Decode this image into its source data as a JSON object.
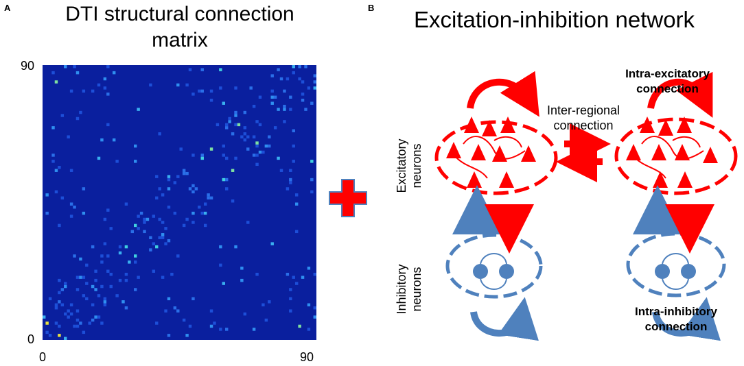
{
  "panel_a": {
    "label": "A",
    "title_line1": "DTI structural connection",
    "title_line2": "matrix",
    "y_top": "90",
    "y_bottom": "0",
    "x_left": "0",
    "x_right": "90"
  },
  "panel_b": {
    "label": "B",
    "title": "Excitation-inhibition network",
    "excitatory_label_1": "Excitatory",
    "excitatory_label_2": "neurons",
    "inhibitory_label_1": "Inhibitory",
    "inhibitory_label_2": "neurons",
    "inter_regional_1": "Inter-regional",
    "inter_regional_2": "connection",
    "intra_excitatory_1": "Intra-excitatory",
    "intra_excitatory_2": "connection",
    "intra_inhibitory_1": "Intra-inhibitory",
    "intra_inhibitory_2": "connection"
  },
  "colors": {
    "matrix_bg": "#0a1f9e",
    "excitatory": "#ff0000",
    "inhibitory": "#4f81bd",
    "plus_fill": "#ff0000",
    "plus_stroke": "#4f81bd"
  },
  "icons": {
    "plus": "plus-icon",
    "neuron_triangle": "triangle-neuron-icon",
    "neuron_circle": "circle-neuron-icon"
  }
}
